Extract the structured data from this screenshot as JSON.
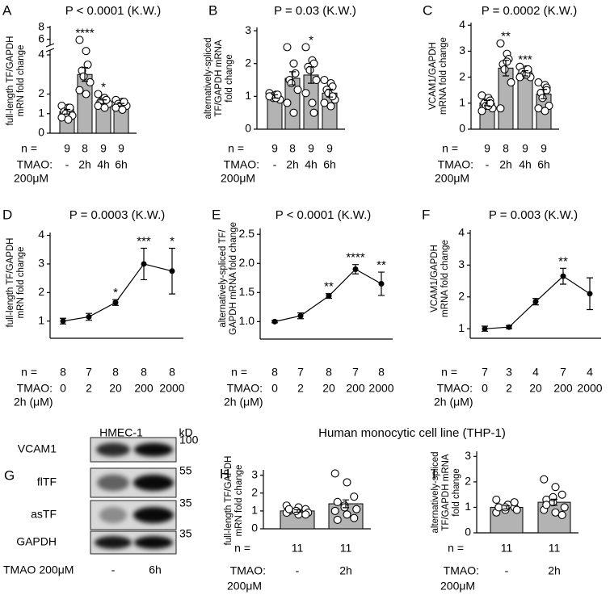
{
  "section_title": "Human monocytic cell line (THP-1)",
  "blot": {
    "panel": "G",
    "title": "HMEC-1",
    "unit": "kD",
    "rows": [
      {
        "protein": "VCAM1",
        "kd": 100
      },
      {
        "protein": "flTF",
        "kd": 55
      },
      {
        "protein": "asTF",
        "kd": 35
      },
      {
        "protein": "GAPDH",
        "kd": 35
      }
    ],
    "treatment_label": "TMAO 200μM",
    "lanes": [
      "-",
      "6h"
    ]
  },
  "chart_data": [
    {
      "type": "bar",
      "panel": "A",
      "title": "P < 0.0001 (K.W.)",
      "ylabel": [
        "full-length TF/GAPDH",
        "mRN fold change"
      ],
      "categories": [
        "-",
        "2h",
        "4h",
        "6h"
      ],
      "values": [
        1.1,
        3.0,
        1.6,
        1.45
      ],
      "errors": [
        0.12,
        0.35,
        0.1,
        0.07
      ],
      "annotations": [
        null,
        "****",
        "*",
        null
      ],
      "points": [
        [
          1.4,
          1.3,
          1.2,
          1.1,
          1.0,
          0.9,
          0.8,
          0.7,
          1.3
        ],
        [
          5.9,
          4.2,
          3.5,
          3.2,
          2.9,
          2.6,
          2.2,
          2.0
        ],
        [
          2.0,
          1.8,
          1.7,
          1.6,
          1.6,
          1.5,
          1.4,
          1.3,
          1.7
        ],
        [
          1.7,
          1.6,
          1.5,
          1.5,
          1.4,
          1.4,
          1.3,
          1.2,
          1.6
        ]
      ],
      "n_label": "n =",
      "n": [
        9,
        8,
        9,
        9
      ],
      "xlabel": [
        "TMAO:",
        "200μM"
      ],
      "ylim": [
        0,
        4
      ],
      "yticks": [
        0,
        1,
        2,
        4
      ],
      "ylim_upper": [
        5,
        8
      ],
      "yticks_upper": [
        6,
        8
      ],
      "color": "#b3b3b3"
    },
    {
      "type": "bar",
      "panel": "B",
      "title": "P = 0.03 (K.W.)",
      "ylabel": [
        "alternatively-spliced",
        "TF/GAPDH mRNA",
        "fold change"
      ],
      "categories": [
        "-",
        "2h",
        "4h",
        "6h"
      ],
      "values": [
        1.0,
        1.55,
        1.65,
        1.1
      ],
      "errors": [
        0.05,
        0.2,
        0.25,
        0.12
      ],
      "annotations": [
        null,
        null,
        "*",
        null
      ],
      "points": [
        [
          1.1,
          1.05,
          1.0,
          1.0,
          0.95,
          0.9,
          1.0,
          0.95,
          1.05
        ],
        [
          2.5,
          2.0,
          1.7,
          1.5,
          1.4,
          1.2,
          0.8,
          0.5
        ],
        [
          2.5,
          2.1,
          2.0,
          1.9,
          1.8,
          1.5,
          1.1,
          0.8,
          0.5
        ],
        [
          1.5,
          1.4,
          1.3,
          1.2,
          1.1,
          0.9,
          0.8,
          0.7,
          1.0
        ]
      ],
      "n_label": "n =",
      "n": [
        9,
        8,
        9,
        9
      ],
      "xlabel": [
        "TMAO:",
        "200μM"
      ],
      "ylim": [
        0,
        3.1
      ],
      "yticks": [
        0,
        1,
        2,
        3
      ],
      "color": "#b3b3b3"
    },
    {
      "type": "bar",
      "panel": "C",
      "title": "P = 0.0002 (K.W.)",
      "ylabel": [
        "VCAM1/GAPDH",
        "mRNA fold change"
      ],
      "categories": [
        "-",
        "2h",
        "4h",
        "6h"
      ],
      "values": [
        1.0,
        2.35,
        2.15,
        1.35
      ],
      "errors": [
        0.1,
        0.3,
        0.1,
        0.18
      ],
      "annotations": [
        null,
        "**",
        "***",
        null
      ],
      "points": [
        [
          1.3,
          1.2,
          1.1,
          1.0,
          0.9,
          0.8,
          0.7,
          0.9,
          1.0
        ],
        [
          3.3,
          2.9,
          2.7,
          2.5,
          2.3,
          1.8,
          0.8,
          2.6
        ],
        [
          2.4,
          2.3,
          2.2,
          2.2,
          2.1,
          2.0,
          2.0,
          2.1,
          2.3
        ],
        [
          1.8,
          1.7,
          1.6,
          1.4,
          1.2,
          0.9,
          0.8,
          0.7,
          1.5
        ]
      ],
      "n_label": "n =",
      "n": [
        9,
        8,
        9,
        9
      ],
      "xlabel": [
        "TMAO:",
        "200μM"
      ],
      "ylim": [
        0,
        4.1
      ],
      "yticks": [
        0,
        1,
        2,
        3,
        4
      ],
      "color": "#b3b3b3"
    },
    {
      "type": "line",
      "panel": "D",
      "title": "P = 0.0003 (K.W.)",
      "ylabel": [
        "full-length TF/GAPDH",
        "mRN fold change"
      ],
      "categories": [
        "0",
        "2",
        "20",
        "200",
        "2000"
      ],
      "values": [
        1.0,
        1.15,
        1.65,
        3.0,
        2.75
      ],
      "errors": [
        0.1,
        0.12,
        0.1,
        0.55,
        0.8
      ],
      "annotations": [
        null,
        null,
        "*",
        "***",
        "*"
      ],
      "n_label": "n =",
      "n": [
        8,
        7,
        8,
        8,
        8
      ],
      "xlabel": [
        "TMAO:",
        "2h (μM)"
      ],
      "ylim": [
        0.4,
        4.1
      ],
      "yticks": [
        1,
        2,
        3,
        4
      ],
      "color": "#000000"
    },
    {
      "type": "line",
      "panel": "E",
      "title": "P < 0.0001 (K.W.)",
      "ylabel": [
        "alternatively-spliced TF/",
        "GAPDH mRNA fold change"
      ],
      "categories": [
        "0",
        "2",
        "20",
        "200",
        "2000"
      ],
      "values": [
        1.0,
        1.1,
        1.44,
        1.9,
        1.65
      ],
      "errors": [
        0.02,
        0.05,
        0.04,
        0.08,
        0.2
      ],
      "annotations": [
        null,
        null,
        "**",
        "****",
        "**"
      ],
      "n_label": "n =",
      "n": [
        8,
        7,
        8,
        7,
        8
      ],
      "xlabel": [
        "TMAO:",
        "2h (μM)"
      ],
      "ylim": [
        0.7,
        2.6
      ],
      "yticks": [
        {
          "value": 1,
          "label": "1.0"
        },
        {
          "value": 1.5,
          "label": "1.5"
        },
        {
          "value": 2,
          "label": "2.0"
        },
        {
          "value": 2.5,
          "label": "2.5"
        }
      ],
      "color": "#000000"
    },
    {
      "type": "line",
      "panel": "F",
      "title": "P = 0.003 (K.W.)",
      "ylabel": [
        "VCAM1/GAPDH",
        "mRNA fold change"
      ],
      "categories": [
        "0",
        "2",
        "20",
        "200",
        "2000"
      ],
      "values": [
        1.0,
        1.05,
        1.85,
        2.65,
        2.1
      ],
      "errors": [
        0.08,
        0.05,
        0.1,
        0.25,
        0.5
      ],
      "annotations": [
        null,
        null,
        null,
        "**",
        null
      ],
      "n_label": "n =",
      "n": [
        7,
        3,
        4,
        7,
        4
      ],
      "xlabel": [
        "TMAO:",
        "2h (μM)"
      ],
      "ylim": [
        0.7,
        4.1
      ],
      "yticks": [
        1,
        2,
        3,
        4
      ],
      "color": "#000000"
    },
    {
      "type": "bar",
      "panel": "H",
      "ylabel": [
        "full-length TF/GAPDH",
        "mRN fold change"
      ],
      "categories": [
        "-",
        "2h"
      ],
      "values": [
        1.0,
        1.4
      ],
      "errors": [
        0.07,
        0.22
      ],
      "points": [
        [
          1.3,
          1.2,
          1.1,
          1.0,
          1.0,
          0.9,
          0.9,
          0.8,
          0.8,
          1.1,
          1.0
        ],
        [
          3.1,
          2.6,
          1.8,
          1.5,
          1.3,
          1.1,
          1.0,
          0.8,
          0.6,
          0.5,
          1.2
        ]
      ],
      "n_label": "n =",
      "n": [
        11,
        11
      ],
      "xlabel": [
        "TMAO:",
        "200μM"
      ],
      "ylim": [
        0,
        3.3
      ],
      "yticks": [
        0,
        1,
        2,
        3
      ],
      "color": "#b3b3b3"
    },
    {
      "type": "bar",
      "panel": "I",
      "ylabel": [
        "alternatively-spliced",
        "TF/GAPDH mRNA",
        "fold change"
      ],
      "categories": [
        "-",
        "2h"
      ],
      "values": [
        1.0,
        1.2
      ],
      "errors": [
        0.06,
        0.12
      ],
      "points": [
        [
          1.3,
          1.1,
          1.0,
          1.0,
          0.9,
          0.9,
          0.8,
          1.1,
          1.2,
          1.0,
          1.0
        ],
        [
          2.1,
          1.8,
          1.5,
          1.3,
          1.2,
          1.0,
          0.9,
          0.8,
          0.7,
          1.1,
          1.4
        ]
      ],
      "n_label": "n =",
      "n": [
        11,
        11
      ],
      "xlabel": [
        "TMAO:",
        "200μM"
      ],
      "ylim": [
        0,
        3.2
      ],
      "yticks": [
        0,
        1,
        2,
        3
      ],
      "color": "#b3b3b3"
    }
  ]
}
